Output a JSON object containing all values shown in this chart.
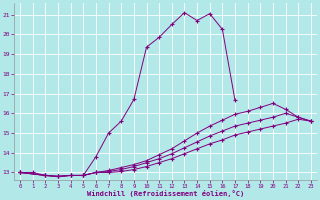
{
  "xlabel": "Windchill (Refroidissement éolien,°C)",
  "background_color": "#b3e8e8",
  "line_color": "#800080",
  "grid_color": "#c8e8e8",
  "xlim": [
    -0.5,
    23.5
  ],
  "ylim": [
    12.6,
    21.6
  ],
  "xticks": [
    0,
    1,
    2,
    3,
    4,
    5,
    6,
    7,
    8,
    9,
    10,
    11,
    12,
    13,
    14,
    15,
    16,
    17,
    18,
    19,
    20,
    21,
    22,
    23
  ],
  "yticks": [
    13,
    14,
    15,
    16,
    17,
    18,
    19,
    20,
    21
  ],
  "curve1_x": [
    0,
    1,
    2,
    3,
    4,
    5,
    6,
    7,
    8,
    9,
    10,
    11,
    12,
    13,
    14,
    15,
    16,
    17,
    18,
    19,
    20,
    21,
    22,
    23
  ],
  "curve1_y": [
    13.0,
    13.0,
    12.85,
    12.8,
    12.85,
    12.85,
    13.8,
    15.0,
    15.6,
    16.7,
    19.35,
    19.85,
    20.5,
    21.1,
    20.7,
    21.05,
    20.25,
    16.65,
    null,
    null,
    null,
    null,
    null,
    null
  ],
  "curve2_x": [
    0,
    2,
    3,
    4,
    5,
    6,
    7,
    8,
    9,
    10,
    11,
    12,
    13,
    14,
    15,
    16,
    17,
    18,
    19,
    20,
    21,
    22,
    23
  ],
  "curve2_y": [
    13.0,
    12.85,
    12.8,
    12.85,
    12.85,
    13.0,
    13.1,
    13.25,
    13.4,
    13.6,
    13.9,
    14.2,
    14.6,
    15.0,
    15.35,
    15.65,
    15.95,
    16.1,
    16.3,
    16.5,
    16.2,
    15.8,
    15.6
  ],
  "curve3_x": [
    0,
    2,
    3,
    4,
    5,
    6,
    7,
    8,
    9,
    10,
    11,
    12,
    13,
    14,
    15,
    16,
    17,
    18,
    19,
    20,
    21,
    22,
    23
  ],
  "curve3_y": [
    13.0,
    12.85,
    12.8,
    12.85,
    12.85,
    13.0,
    13.05,
    13.15,
    13.3,
    13.5,
    13.7,
    13.95,
    14.25,
    14.55,
    14.85,
    15.1,
    15.35,
    15.5,
    15.65,
    15.8,
    16.0,
    15.8,
    15.6
  ],
  "curve4_x": [
    0,
    2,
    3,
    4,
    5,
    6,
    7,
    8,
    9,
    10,
    11,
    12,
    13,
    14,
    15,
    16,
    17,
    18,
    19,
    20,
    21,
    22,
    23
  ],
  "curve4_y": [
    13.0,
    12.85,
    12.8,
    12.85,
    12.85,
    13.0,
    13.0,
    13.05,
    13.15,
    13.3,
    13.5,
    13.7,
    13.95,
    14.2,
    14.45,
    14.65,
    14.9,
    15.05,
    15.2,
    15.35,
    15.5,
    15.7,
    15.6
  ]
}
